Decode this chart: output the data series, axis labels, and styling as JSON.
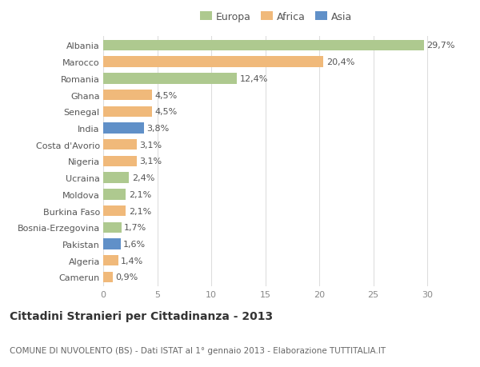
{
  "countries": [
    "Albania",
    "Marocco",
    "Romania",
    "Ghana",
    "Senegal",
    "India",
    "Costa d'Avorio",
    "Nigeria",
    "Ucraina",
    "Moldova",
    "Burkina Faso",
    "Bosnia-Erzegovina",
    "Pakistan",
    "Algeria",
    "Camerun"
  ],
  "values": [
    29.7,
    20.4,
    12.4,
    4.5,
    4.5,
    3.8,
    3.1,
    3.1,
    2.4,
    2.1,
    2.1,
    1.7,
    1.6,
    1.4,
    0.9
  ],
  "labels": [
    "29,7%",
    "20,4%",
    "12,4%",
    "4,5%",
    "4,5%",
    "3,8%",
    "3,1%",
    "3,1%",
    "2,4%",
    "2,1%",
    "2,1%",
    "1,7%",
    "1,6%",
    "1,4%",
    "0,9%"
  ],
  "continents": [
    "Europa",
    "Africa",
    "Europa",
    "Africa",
    "Africa",
    "Asia",
    "Africa",
    "Africa",
    "Europa",
    "Europa",
    "Africa",
    "Europa",
    "Asia",
    "Africa",
    "Africa"
  ],
  "colors": {
    "Europa": "#aec98f",
    "Africa": "#f0b97a",
    "Asia": "#6090c8"
  },
  "legend_order": [
    "Europa",
    "Africa",
    "Asia"
  ],
  "title": "Cittadini Stranieri per Cittadinanza - 2013",
  "subtitle": "COMUNE DI NUVOLENTO (BS) - Dati ISTAT al 1° gennaio 2013 - Elaborazione TUTTITALIA.IT",
  "xlim": [
    0,
    32
  ],
  "xticks": [
    0,
    5,
    10,
    15,
    20,
    25,
    30
  ],
  "bg_color": "#ffffff",
  "grid_color": "#dddddd",
  "bar_height": 0.65,
  "label_fontsize": 8,
  "tick_fontsize": 8,
  "title_fontsize": 10,
  "subtitle_fontsize": 7.5,
  "legend_fontsize": 9
}
